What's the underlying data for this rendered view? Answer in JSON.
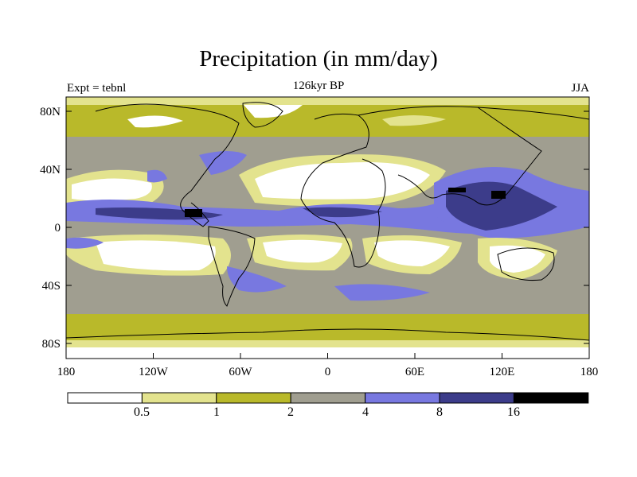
{
  "title": "Precipitation (in mm/day)",
  "left_note": "Expt = tebnl",
  "center_note": "126kyr BP",
  "right_note": "JJA",
  "lat_ticks": [
    "80N",
    "40N",
    "0",
    "40S",
    "80S"
  ],
  "lon_ticks": [
    "180",
    "120W",
    "60W",
    "0",
    "60E",
    "120E",
    "180"
  ],
  "colorbar": {
    "colors": [
      "#ffffff",
      "#e3e38e",
      "#b9b92a",
      "#a09e90",
      "#7878e0",
      "#3c3c8a",
      "#000000"
    ],
    "labels": [
      "0.5",
      "1",
      "2",
      "4",
      "8",
      "16"
    ]
  }
}
